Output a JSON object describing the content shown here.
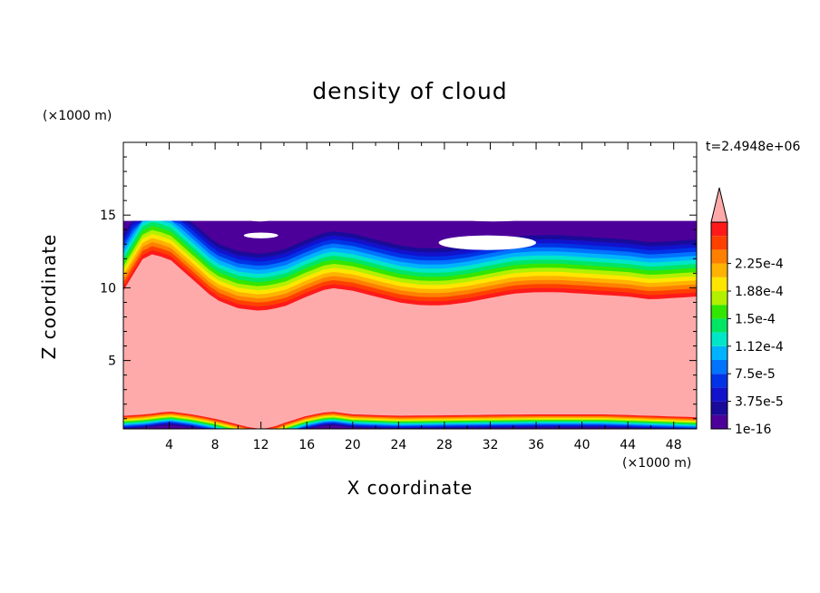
{
  "chart_data": {
    "type": "heatmap",
    "title": "density of cloud",
    "xlabel": "X coordinate",
    "ylabel": "Z coordinate",
    "x_unit": "(×1000 m)",
    "y_unit": "(×1000 m)",
    "time_label": "t=2.4948e+06",
    "xlim": [
      0,
      50
    ],
    "ylim": [
      0.3,
      20
    ],
    "x_ticks": [
      "4",
      "8",
      "12",
      "16",
      "20",
      "24",
      "28",
      "32",
      "36",
      "40",
      "44",
      "48"
    ],
    "y_ticks": [
      "5",
      "10",
      "15"
    ],
    "colorbar": {
      "labels": [
        "1e-16",
        "3.75e-5",
        "7.5e-5",
        "1.12e-4",
        "1.5e-4",
        "1.88e-4",
        "2.25e-4"
      ],
      "levels": [
        1e-16,
        1.875e-05,
        3.75e-05,
        5.625e-05,
        7.5e-05,
        9.375e-05,
        0.0001125,
        0.00013125,
        0.00015,
        0.00016875,
        0.0001875,
        0.00020625,
        0.000225,
        0.00024375
      ],
      "colors": [
        "#4d0099",
        "#1a0a99",
        "#1212cc",
        "#0033e6",
        "#0073ff",
        "#00b3ff",
        "#00e6c8",
        "#00e664",
        "#33e600",
        "#b3f000",
        "#ffe600",
        "#ffb300",
        "#ff8000",
        "#ff4000",
        "#ff1a1a"
      ],
      "extend_color": "#ffaaaa",
      "extend": "max"
    },
    "field": {
      "description_levels": "min clear above top of cloud layer",
      "cloud_top_z": 14.6,
      "upper_saturated_base_z": [
        [
          0,
          9.8
        ],
        [
          2,
          12.4
        ],
        [
          4,
          12.0
        ],
        [
          6,
          10.6
        ],
        [
          8,
          9.2
        ],
        [
          10,
          8.6
        ],
        [
          12,
          8.4
        ],
        [
          14,
          8.7
        ],
        [
          16,
          9.4
        ],
        [
          18,
          10.0
        ],
        [
          20,
          9.8
        ],
        [
          22,
          9.4
        ],
        [
          24,
          9.0
        ],
        [
          26,
          8.8
        ],
        [
          28,
          8.8
        ],
        [
          30,
          9.0
        ],
        [
          32,
          9.3
        ],
        [
          34,
          9.6
        ],
        [
          36,
          9.7
        ],
        [
          38,
          9.7
        ],
        [
          40,
          9.6
        ],
        [
          42,
          9.5
        ],
        [
          44,
          9.4
        ],
        [
          46,
          9.2
        ],
        [
          48,
          9.3
        ],
        [
          50,
          9.4
        ]
      ],
      "lower_saturated_top_z": [
        [
          0,
          1.2
        ],
        [
          2,
          1.3
        ],
        [
          4,
          1.5
        ],
        [
          6,
          1.3
        ],
        [
          8,
          1.0
        ],
        [
          10,
          0.6
        ],
        [
          11,
          0.4
        ],
        [
          12,
          0.3
        ],
        [
          13,
          0.4
        ],
        [
          14,
          0.7
        ],
        [
          16,
          1.2
        ],
        [
          18,
          1.5
        ],
        [
          20,
          1.3
        ],
        [
          24,
          1.2
        ],
        [
          30,
          1.25
        ],
        [
          36,
          1.3
        ],
        [
          42,
          1.3
        ],
        [
          46,
          1.2
        ],
        [
          50,
          1.1
        ]
      ],
      "clear_patches": [
        {
          "x": [
            10.5,
            13.5
          ],
          "z": [
            13.4,
            13.8
          ]
        },
        {
          "x": [
            27.5,
            36.0
          ],
          "z": [
            12.6,
            13.6
          ]
        },
        {
          "x": [
            10.8,
            13.0
          ],
          "z": [
            14.6,
            14.9
          ]
        },
        {
          "x": [
            29.5,
            35.0
          ],
          "z": [
            14.6,
            14.9
          ]
        }
      ]
    }
  }
}
